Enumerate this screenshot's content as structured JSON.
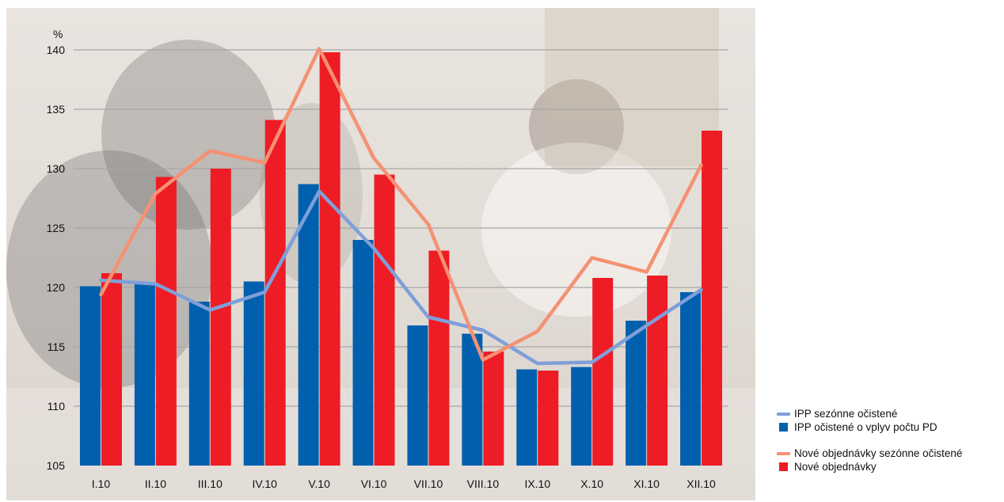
{
  "chart_data": {
    "type": "bar",
    "ylabel": "%",
    "ylim": [
      105,
      140
    ],
    "y_ticks": [
      "105",
      "110",
      "115",
      "120",
      "125",
      "130",
      "135",
      "140"
    ],
    "grid": true,
    "legend_position": "bottom-right",
    "categories": [
      "I.10",
      "II.10",
      "III.10",
      "IV.10",
      "V.10",
      "VI.10",
      "VII.10",
      "VIII.10",
      "IX.10",
      "X.10",
      "XI.10",
      "XII.10"
    ],
    "series": [
      {
        "name": "IPP sezónne očistené",
        "kind": "line",
        "color": "#7f9fd9",
        "values": [
          120.6,
          120.3,
          118.1,
          119.6,
          128.1,
          123.3,
          117.5,
          116.4,
          113.6,
          113.7,
          116.8,
          119.8
        ]
      },
      {
        "name": "IPP očistené o vplyv počtu PD",
        "kind": "bar",
        "color": "#0060ae",
        "values": [
          120.1,
          120.3,
          118.8,
          120.5,
          128.7,
          124.0,
          116.8,
          116.1,
          113.1,
          113.3,
          117.2,
          119.6
        ]
      },
      {
        "name": "Nové objednávky sezónne očistené",
        "kind": "line",
        "color": "#f59173",
        "values": [
          119.4,
          127.9,
          131.5,
          130.5,
          140.1,
          130.9,
          125.3,
          113.9,
          116.3,
          122.5,
          121.3,
          130.3
        ]
      },
      {
        "name": "Nové objednávky",
        "kind": "bar",
        "color": "#ee1c25",
        "values": [
          121.2,
          129.3,
          130.0,
          134.1,
          139.8,
          129.5,
          123.1,
          114.6,
          113.0,
          120.8,
          121.0,
          133.2
        ]
      }
    ]
  }
}
